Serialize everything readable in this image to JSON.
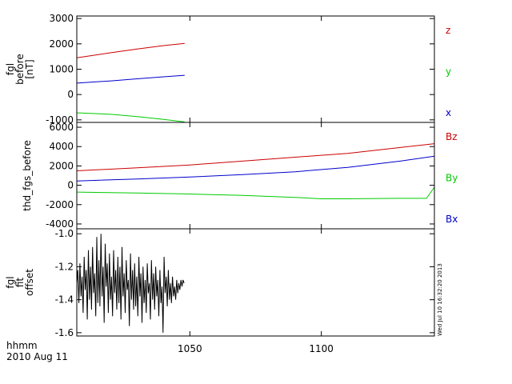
{
  "footer": {
    "time_label": "hhmm",
    "date_label": "2010 Aug 11",
    "creation_stamp": "Wed Jul 10 16:32:20 2013"
  },
  "chart_data": [
    {
      "type": "line",
      "ylabel_lines": [
        "fgl",
        "before",
        "[nT]"
      ],
      "xlim": [
        1007,
        1143
      ],
      "ylim": [
        -1100,
        3100
      ],
      "yticks": [
        -1000,
        0,
        1000,
        2000,
        3000
      ],
      "series": [
        {
          "name": "z",
          "color": "#cc0000",
          "x": [
            1007,
            1020,
            1030,
            1040,
            1048
          ],
          "values": [
            1450,
            1650,
            1800,
            1930,
            2020
          ]
        },
        {
          "name": "y",
          "color": "#00cc00",
          "x": [
            1007,
            1020,
            1030,
            1040,
            1048
          ],
          "values": [
            -720,
            -780,
            -870,
            -980,
            -1080
          ]
        },
        {
          "name": "x",
          "color": "#0000cc",
          "x": [
            1007,
            1020,
            1030,
            1040,
            1048
          ],
          "values": [
            450,
            540,
            620,
            700,
            760
          ]
        }
      ]
    },
    {
      "type": "line",
      "ylabel_lines": [
        "thd_fgs_before"
      ],
      "xlim": [
        1007,
        1143
      ],
      "ylim": [
        -4500,
        6500
      ],
      "yticks": [
        -4000,
        -2000,
        0,
        2000,
        4000,
        6000
      ],
      "series": [
        {
          "name": "Bz",
          "color": "#cc0000",
          "x": [
            1007,
            1030,
            1050,
            1070,
            1090,
            1110,
            1130,
            1143
          ],
          "values": [
            1500,
            1800,
            2100,
            2500,
            2900,
            3300,
            3900,
            4300
          ]
        },
        {
          "name": "By",
          "color": "#00cc00",
          "x": [
            1007,
            1030,
            1050,
            1070,
            1090,
            1100,
            1110,
            1130,
            1140,
            1143
          ],
          "values": [
            -700,
            -800,
            -900,
            -1050,
            -1250,
            -1400,
            -1400,
            -1350,
            -1350,
            -200
          ]
        },
        {
          "name": "Bx",
          "color": "#0000cc",
          "x": [
            1007,
            1030,
            1050,
            1070,
            1090,
            1110,
            1130,
            1143
          ],
          "values": [
            450,
            650,
            850,
            1100,
            1400,
            1850,
            2500,
            3000
          ]
        }
      ]
    },
    {
      "type": "line",
      "ylabel_lines": [
        "fgl",
        "fit",
        "offset"
      ],
      "xlim": [
        1007,
        1143
      ],
      "ylim": [
        -1.62,
        -0.97
      ],
      "yticks": [
        -1.6,
        -1.4,
        -1.2,
        -1.0
      ],
      "xticks": [
        1050,
        1100
      ],
      "xticklabels": [
        "1050",
        "1100"
      ],
      "series": [
        {
          "name": "offset",
          "color": "#000000",
          "x": [
            1007.0,
            1007.4,
            1007.8,
            1008.2,
            1008.6,
            1009.0,
            1009.4,
            1009.8,
            1010.2,
            1010.6,
            1011.0,
            1011.4,
            1011.8,
            1012.2,
            1012.6,
            1013.0,
            1013.4,
            1013.8,
            1014.2,
            1014.6,
            1015.0,
            1015.4,
            1015.8,
            1016.2,
            1016.6,
            1017.0,
            1017.4,
            1017.8,
            1018.2,
            1018.6,
            1019.0,
            1019.4,
            1019.8,
            1020.2,
            1020.6,
            1021.0,
            1021.4,
            1021.8,
            1022.2,
            1022.6,
            1023.0,
            1023.4,
            1023.8,
            1024.2,
            1024.6,
            1025.0,
            1025.4,
            1025.8,
            1026.2,
            1026.6,
            1027.0,
            1027.4,
            1027.8,
            1028.2,
            1028.6,
            1029.0,
            1029.4,
            1029.8,
            1030.2,
            1030.6,
            1031.0,
            1031.4,
            1031.8,
            1032.2,
            1032.6,
            1033.0,
            1033.4,
            1033.8,
            1034.2,
            1034.6,
            1035.0,
            1035.4,
            1035.8,
            1036.2,
            1036.6,
            1037.0,
            1037.4,
            1037.8,
            1038.2,
            1038.6,
            1039.0,
            1039.4,
            1039.8,
            1040.2,
            1040.6,
            1041.0,
            1041.4,
            1041.8,
            1042.2,
            1042.6,
            1043.0,
            1043.4,
            1043.8,
            1044.2,
            1044.6,
            1045.0,
            1045.4,
            1045.8,
            1046.2,
            1046.6,
            1047.0,
            1047.4,
            1047.8
          ],
          "values": [
            -1.3,
            -1.22,
            -1.42,
            -1.18,
            -1.38,
            -1.26,
            -1.48,
            -1.14,
            -1.34,
            -1.22,
            -1.52,
            -1.1,
            -1.4,
            -1.2,
            -1.46,
            -1.08,
            -1.36,
            -1.24,
            -1.5,
            -1.02,
            -1.42,
            -1.16,
            -1.44,
            -1.0,
            -1.38,
            -1.2,
            -1.54,
            -1.06,
            -1.32,
            -1.18,
            -1.48,
            -1.12,
            -1.4,
            -1.26,
            -1.5,
            -1.1,
            -1.36,
            -1.22,
            -1.46,
            -1.14,
            -1.42,
            -1.2,
            -1.52,
            -1.08,
            -1.38,
            -1.24,
            -1.48,
            -1.16,
            -1.34,
            -1.28,
            -1.56,
            -1.12,
            -1.4,
            -1.22,
            -1.46,
            -1.18,
            -1.44,
            -1.26,
            -1.5,
            -1.14,
            -1.38,
            -1.24,
            -1.54,
            -1.2,
            -1.42,
            -1.28,
            -1.48,
            -1.18,
            -1.36,
            -1.3,
            -1.52,
            -1.16,
            -1.4,
            -1.24,
            -1.46,
            -1.2,
            -1.38,
            -1.28,
            -1.5,
            -1.22,
            -1.42,
            -1.32,
            -1.6,
            -1.14,
            -1.36,
            -1.26,
            -1.44,
            -1.22,
            -1.4,
            -1.3,
            -1.42,
            -1.26,
            -1.38,
            -1.32,
            -1.4,
            -1.28,
            -1.36,
            -1.3,
            -1.34,
            -1.28,
            -1.32,
            -1.28,
            -1.3
          ]
        }
      ]
    }
  ]
}
